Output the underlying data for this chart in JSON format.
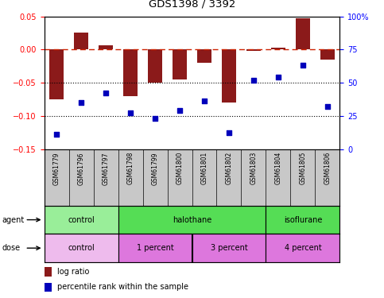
{
  "title": "GDS1398 / 3392",
  "samples": [
    "GSM61779",
    "GSM61796",
    "GSM61797",
    "GSM61798",
    "GSM61799",
    "GSM61800",
    "GSM61801",
    "GSM61802",
    "GSM61803",
    "GSM61804",
    "GSM61805",
    "GSM61806"
  ],
  "log_ratio": [
    -0.075,
    0.025,
    0.007,
    -0.07,
    -0.05,
    -0.045,
    -0.02,
    -0.08,
    -0.002,
    0.003,
    0.047,
    -0.015
  ],
  "percentile": [
    11,
    35,
    42,
    27,
    23,
    29,
    36,
    12,
    52,
    54,
    63,
    32
  ],
  "ylim_left": [
    -0.15,
    0.05
  ],
  "ylim_right": [
    0,
    100
  ],
  "yticks_left": [
    -0.15,
    -0.1,
    -0.05,
    0.0,
    0.05
  ],
  "yticks_right": [
    0,
    25,
    50,
    75,
    100
  ],
  "bar_color": "#8B1A1A",
  "dot_color": "#0000BB",
  "dashed_line_color": "#CC2200",
  "dotted_line_color": "#000000",
  "agent_groups": [
    {
      "label": "control",
      "start": 0,
      "end": 3,
      "color": "#99EE99"
    },
    {
      "label": "halothane",
      "start": 3,
      "end": 9,
      "color": "#55DD55"
    },
    {
      "label": "isoflurane",
      "start": 9,
      "end": 12,
      "color": "#55DD55"
    }
  ],
  "dose_groups": [
    {
      "label": "control",
      "start": 0,
      "end": 3,
      "color": "#EEBBED"
    },
    {
      "label": "1 percent",
      "start": 3,
      "end": 6,
      "color": "#DD77DD"
    },
    {
      "label": "3 percent",
      "start": 6,
      "end": 9,
      "color": "#DD77DD"
    },
    {
      "label": "4 percent",
      "start": 9,
      "end": 12,
      "color": "#DD77DD"
    }
  ],
  "legend_log_ratio": "log ratio",
  "legend_percentile": "percentile rank within the sample",
  "agent_label": "agent",
  "dose_label": "dose",
  "bg_color": "#FFFFFF",
  "label_bg": "#C8C8C8",
  "right_tick_pct_label": "100%"
}
